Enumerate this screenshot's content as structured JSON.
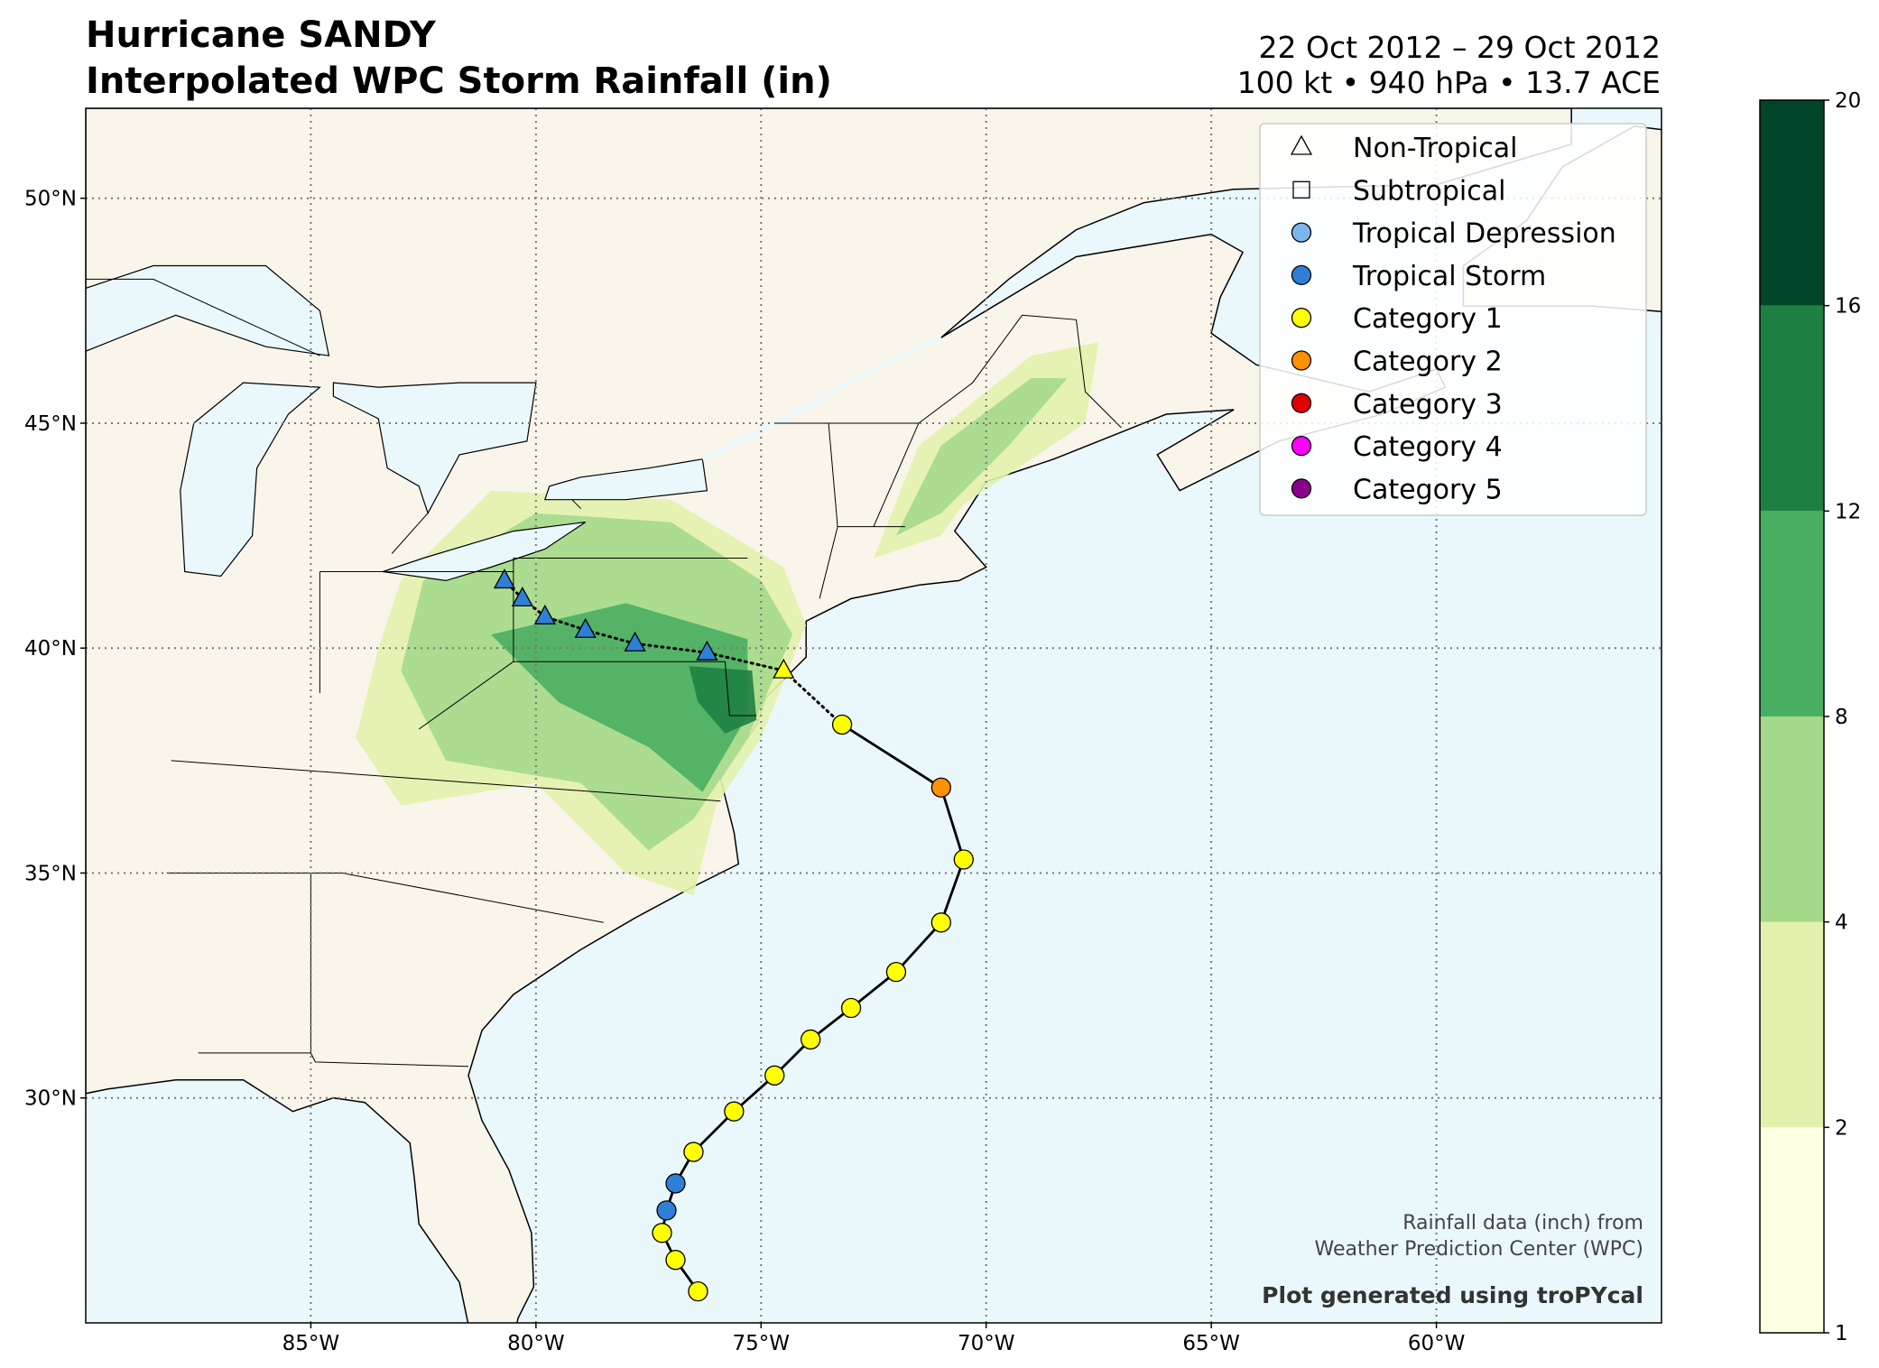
{
  "chart_data": {
    "type": "map",
    "title": "Hurricane SANDY",
    "subtitle": "Interpolated WPC Storm Rainfall (in)",
    "date_range": "22 Oct 2012 – 29 Oct 2012",
    "stats": "100 kt • 940 hPa • 13.7 ACE",
    "xlim": [
      -90,
      -55
    ],
    "ylim": [
      25,
      52
    ],
    "xticks": [
      {
        "value": -85,
        "label": "85°W"
      },
      {
        "value": -80,
        "label": "80°W"
      },
      {
        "value": -75,
        "label": "75°W"
      },
      {
        "value": -70,
        "label": "70°W"
      },
      {
        "value": -65,
        "label": "65°W"
      },
      {
        "value": -60,
        "label": "60°W"
      }
    ],
    "yticks": [
      {
        "value": 30,
        "label": "30°N"
      },
      {
        "value": 35,
        "label": "35°N"
      },
      {
        "value": 40,
        "label": "40°N"
      },
      {
        "value": 45,
        "label": "45°N"
      },
      {
        "value": 50,
        "label": "50°N"
      }
    ],
    "grid": true,
    "legend_position": "upper right",
    "legend": [
      {
        "name": "Non-Tropical",
        "shape": "triangle",
        "color": "none"
      },
      {
        "name": "Subtropical",
        "shape": "square",
        "color": "none"
      },
      {
        "name": "Tropical Depression",
        "shape": "circle",
        "color": "#7cb6ec"
      },
      {
        "name": "Tropical Storm",
        "shape": "circle",
        "color": "#2e7fd6"
      },
      {
        "name": "Category 1",
        "shape": "circle",
        "color": "#ffff00"
      },
      {
        "name": "Category 2",
        "shape": "circle",
        "color": "#ff9000"
      },
      {
        "name": "Category 3",
        "shape": "circle",
        "color": "#e00000"
      },
      {
        "name": "Category 4",
        "shape": "circle",
        "color": "#ff00ff"
      },
      {
        "name": "Category 5",
        "shape": "circle",
        "color": "#8b0088"
      }
    ],
    "track": {
      "lon": [
        -76.4,
        -76.9,
        -77.2,
        -77.1,
        -76.9,
        -76.5,
        -75.6,
        -74.7,
        -73.9,
        -73.0,
        -72.0,
        -71.0,
        -70.5,
        -71.0,
        -73.2,
        -74.5,
        -76.2,
        -77.8,
        -78.9,
        -79.8,
        -80.3,
        -80.7
      ],
      "lat": [
        25.7,
        26.4,
        27.0,
        27.5,
        28.1,
        28.8,
        29.7,
        30.5,
        31.3,
        32.0,
        32.8,
        33.9,
        35.3,
        36.9,
        38.3,
        39.5,
        39.9,
        40.1,
        40.4,
        40.7,
        41.1,
        41.5
      ],
      "shape": [
        "circle",
        "circle",
        "circle",
        "circle",
        "circle",
        "circle",
        "circle",
        "circle",
        "circle",
        "circle",
        "circle",
        "circle",
        "circle",
        "circle",
        "circle",
        "triangle",
        "triangle",
        "triangle",
        "triangle",
        "triangle",
        "triangle",
        "triangle"
      ],
      "color": [
        "#ffff00",
        "#ffff00",
        "#ffff00",
        "#2e7fd6",
        "#2e7fd6",
        "#ffff00",
        "#ffff00",
        "#ffff00",
        "#ffff00",
        "#ffff00",
        "#ffff00",
        "#ffff00",
        "#ffff00",
        "#ff9000",
        "#ffff00",
        "#ffff00",
        "#2e7fd6",
        "#2e7fd6",
        "#2e7fd6",
        "#2e7fd6",
        "#2e7fd6",
        "#2e7fd6"
      ]
    },
    "colorbar": {
      "levels": [
        1,
        2,
        4,
        8,
        12,
        16,
        20
      ],
      "colors": [
        "#fdfee2",
        "#e2f2ad",
        "#a4d98b",
        "#4aae62",
        "#1e7f43",
        "#00452a"
      ]
    },
    "credit_lines": [
      "Rainfall data (inch) from",
      "Weather Prediction Center (WPC)"
    ],
    "generated_by": "Plot generated using troPYcal"
  }
}
